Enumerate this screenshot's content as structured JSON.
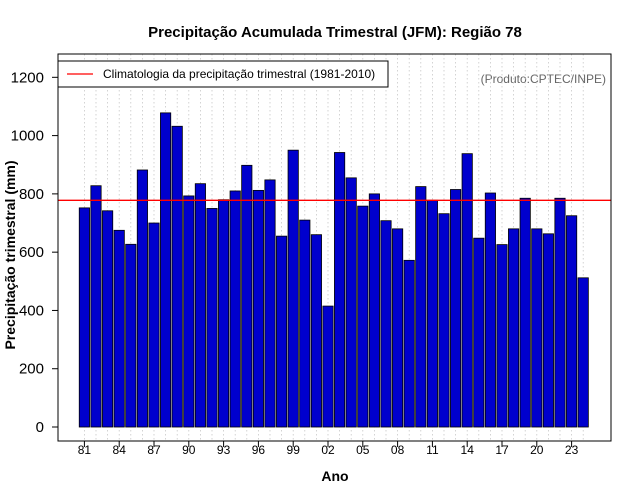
{
  "chart_data": {
    "type": "bar",
    "title": "Precipitação Acumulada Trimestral (JFM): Região 78",
    "xlabel": "Ano",
    "ylabel": "Precipitação trimestral (mm)",
    "ylim": [
      0,
      1280
    ],
    "yticks": [
      0,
      200,
      400,
      600,
      800,
      1000,
      1200
    ],
    "categories": [
      "1981",
      "1982",
      "1983",
      "1984",
      "1985",
      "1986",
      "1987",
      "1988",
      "1989",
      "1990",
      "1991",
      "1992",
      "1993",
      "1994",
      "1995",
      "1996",
      "1997",
      "1998",
      "1999",
      "2000",
      "2001",
      "2002",
      "2003",
      "2004",
      "2005",
      "2006",
      "2007",
      "2008",
      "2009",
      "2010",
      "2011",
      "2012",
      "2013",
      "2014",
      "2015",
      "2016",
      "2017",
      "2018",
      "2019",
      "2020",
      "2021",
      "2022",
      "2023",
      "2024"
    ],
    "values": [
      752,
      828,
      742,
      675,
      627,
      882,
      700,
      1078,
      1032,
      793,
      835,
      750,
      780,
      810,
      898,
      812,
      848,
      655,
      950,
      710,
      660,
      415,
      942,
      855,
      758,
      800,
      708,
      680,
      572,
      825,
      778,
      732,
      815,
      938,
      648,
      803,
      626,
      680,
      785,
      680,
      663,
      785,
      725,
      512
    ],
    "xtick_labels": [
      {
        "index": 0,
        "label": "81"
      },
      {
        "index": 3,
        "label": "84"
      },
      {
        "index": 6,
        "label": "87"
      },
      {
        "index": 9,
        "label": "90"
      },
      {
        "index": 12,
        "label": "93"
      },
      {
        "index": 15,
        "label": "96"
      },
      {
        "index": 18,
        "label": "99"
      },
      {
        "index": 21,
        "label": "02"
      },
      {
        "index": 24,
        "label": "05"
      },
      {
        "index": 27,
        "label": "08"
      },
      {
        "index": 30,
        "label": "11"
      },
      {
        "index": 33,
        "label": "14"
      },
      {
        "index": 36,
        "label": "17"
      },
      {
        "index": 39,
        "label": "20"
      },
      {
        "index": 42,
        "label": "23"
      }
    ],
    "climatology": {
      "value": 778,
      "label": "Climatologia da precipitação trimestral (1981-2010)",
      "color": "#ff0000"
    },
    "annotation": "(Produto:CPTEC/INPE)",
    "bar_color": "#0000cd",
    "bar_edge_color": "#000000",
    "grid": "vertical-dotted",
    "legend_position": "top-left"
  }
}
